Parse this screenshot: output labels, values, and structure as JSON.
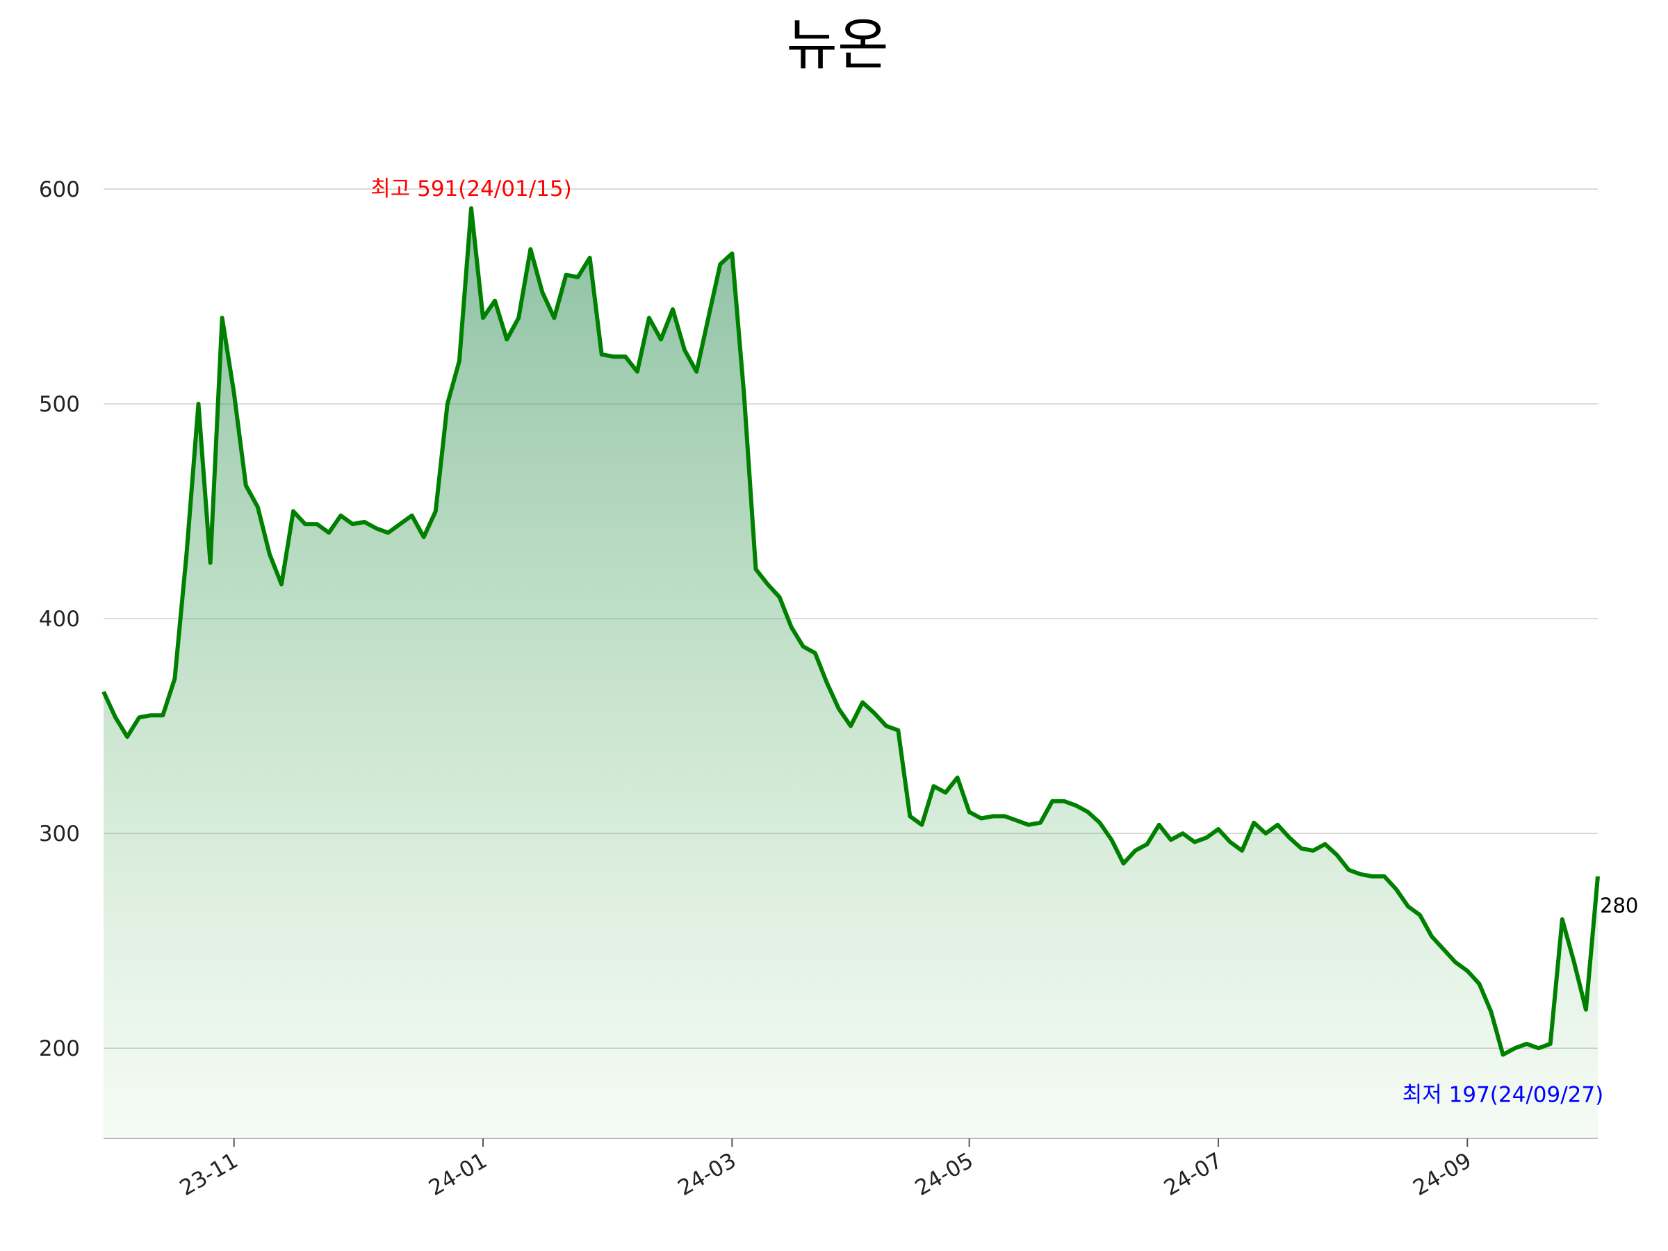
{
  "chart_data": {
    "type": "line",
    "title": "뉴온",
    "values": [
      366,
      354,
      345,
      354,
      355,
      355,
      372,
      430,
      500,
      426,
      540,
      505,
      462,
      452,
      430,
      416,
      450,
      444,
      444,
      440,
      448,
      444,
      445,
      442,
      440,
      444,
      448,
      438,
      450,
      500,
      520,
      591,
      540,
      548,
      530,
      540,
      572,
      552,
      540,
      560,
      559,
      568,
      523,
      522,
      522,
      515,
      540,
      530,
      544,
      525,
      515,
      540,
      565,
      570,
      505,
      423,
      416,
      410,
      396,
      387,
      384,
      370,
      358,
      350,
      361,
      356,
      350,
      348,
      308,
      304,
      322,
      319,
      326,
      310,
      307,
      308,
      308,
      306,
      304,
      305,
      315,
      315,
      313,
      310,
      305,
      297,
      286,
      292,
      295,
      304,
      297,
      300,
      296,
      298,
      302,
      296,
      292,
      305,
      300,
      304,
      298,
      293,
      292,
      295,
      290,
      283,
      281,
      280,
      280,
      274,
      266,
      262,
      252,
      246,
      240,
      236,
      230,
      217,
      197,
      200,
      202,
      200,
      202,
      260,
      240,
      218,
      280
    ],
    "color": "#008000",
    "xlim": [
      0,
      126
    ],
    "xticks": [
      {
        "value": 11,
        "label": "23-11"
      },
      {
        "value": 32,
        "label": "24-01"
      },
      {
        "value": 53,
        "label": "24-03"
      },
      {
        "value": 73,
        "label": "24-05"
      },
      {
        "value": 94,
        "label": "24-07"
      },
      {
        "value": 115,
        "label": "24-09"
      }
    ],
    "ylim": [
      158,
      640
    ],
    "yticks": [
      200,
      300,
      400,
      500,
      600
    ],
    "grid": true,
    "annotations": [
      {
        "text": "최고 591(24/01/15)",
        "color": "#ff0000"
      },
      {
        "text": "최저 197(24/09/27)",
        "color": "#0000ff"
      }
    ]
  }
}
